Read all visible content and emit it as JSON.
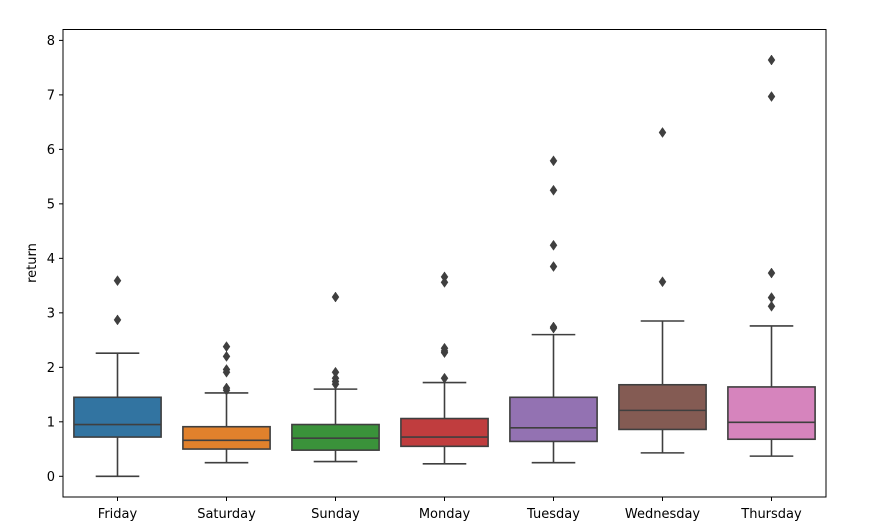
{
  "chart_data": {
    "type": "box",
    "xlabel": "",
    "ylabel": "return",
    "ylim": [
      -0.38,
      8.2
    ],
    "yticks": [
      0,
      1,
      2,
      3,
      4,
      5,
      6,
      7,
      8
    ],
    "grid": false,
    "categories": [
      "Friday",
      "Saturday",
      "Sunday",
      "Monday",
      "Tuesday",
      "Wednesday",
      "Thursday"
    ],
    "colors": [
      "#3274a1",
      "#e1812c",
      "#3a923a",
      "#c03d3e",
      "#9372b2",
      "#845b53",
      "#d684bd"
    ],
    "boxes": [
      {
        "whisker_low": 0.0,
        "q1": 0.72,
        "median": 0.95,
        "q3": 1.45,
        "whisker_high": 2.26,
        "outliers": [
          2.87,
          3.59
        ]
      },
      {
        "whisker_low": 0.25,
        "q1": 0.5,
        "median": 0.66,
        "q3": 0.91,
        "whisker_high": 1.53,
        "outliers": [
          1.58,
          1.62,
          1.91,
          1.96,
          2.2,
          2.38
        ]
      },
      {
        "whisker_low": 0.27,
        "q1": 0.48,
        "median": 0.7,
        "q3": 0.95,
        "whisker_high": 1.6,
        "outliers": [
          1.69,
          1.74,
          1.8,
          1.91,
          3.29
        ]
      },
      {
        "whisker_low": 0.23,
        "q1": 0.55,
        "median": 0.72,
        "q3": 1.06,
        "whisker_high": 1.72,
        "outliers": [
          1.8,
          2.27,
          2.3,
          2.35,
          3.56,
          3.66
        ]
      },
      {
        "whisker_low": 0.25,
        "q1": 0.64,
        "median": 0.89,
        "q3": 1.45,
        "whisker_high": 2.6,
        "outliers": [
          2.72,
          2.74,
          3.85,
          4.24,
          5.25,
          5.79
        ]
      },
      {
        "whisker_low": 0.43,
        "q1": 0.86,
        "median": 1.21,
        "q3": 1.68,
        "whisker_high": 2.85,
        "outliers": [
          3.57,
          6.31
        ]
      },
      {
        "whisker_low": 0.37,
        "q1": 0.68,
        "median": 0.99,
        "q3": 1.64,
        "whisker_high": 2.76,
        "outliers": [
          3.12,
          3.28,
          3.73,
          6.97,
          7.64
        ]
      }
    ]
  }
}
